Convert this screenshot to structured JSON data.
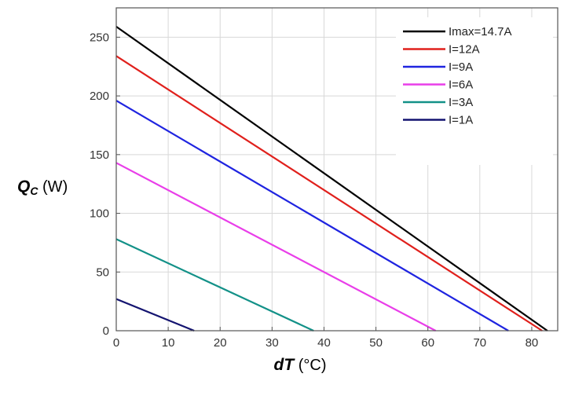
{
  "chart_data": {
    "type": "line",
    "xlabel": {
      "main": "dT",
      "unit": " (°C)"
    },
    "ylabel": {
      "main": "Q",
      "sub": "C",
      "unit": " (W)"
    },
    "xlim": [
      0,
      85
    ],
    "ylim": [
      0,
      275
    ],
    "xticks": [
      0,
      10,
      20,
      30,
      40,
      50,
      60,
      70,
      80
    ],
    "yticks": [
      0,
      50,
      100,
      150,
      200,
      250
    ],
    "grid": true,
    "legend_position": "top-right",
    "series": [
      {
        "name": "Imax=14.7A",
        "color": "#000000",
        "x": [
          0,
          83
        ],
        "y": [
          259,
          0
        ]
      },
      {
        "name": "I=12A",
        "color": "#e0201c",
        "x": [
          0,
          82
        ],
        "y": [
          234,
          0
        ]
      },
      {
        "name": "I=9A",
        "color": "#1f24e0",
        "x": [
          0,
          75.5
        ],
        "y": [
          196,
          0
        ]
      },
      {
        "name": "I=6A",
        "color": "#e93ee9",
        "x": [
          0,
          61.5
        ],
        "y": [
          143,
          0
        ]
      },
      {
        "name": "I=3A",
        "color": "#139188",
        "x": [
          0,
          38
        ],
        "y": [
          78,
          0
        ]
      },
      {
        "name": "I=1A",
        "color": "#141470",
        "x": [
          0,
          15
        ],
        "y": [
          27,
          0
        ]
      }
    ]
  }
}
